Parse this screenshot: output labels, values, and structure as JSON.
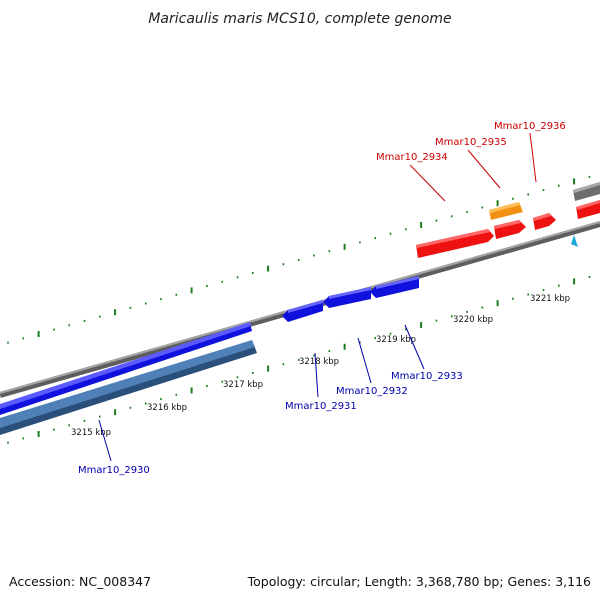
{
  "title": "Maricaulis maris MCS10, complete genome",
  "footer": {
    "accession": "Accession: NC_008347",
    "info": "Topology: circular; Length: 3,368,780 bp; Genes: 3,116"
  },
  "colors": {
    "background": "#ffffff",
    "backbone": "#8a8a8a",
    "tick_dots": "#1e7d1e",
    "forward_gene": "#ee1111",
    "forward_gene_label": "#cc0000",
    "orange_gene": "#f29111",
    "gray_gene": "#6d6d6d",
    "reverse_gene": "#1111dd",
    "reverse_gene_label": "#0000aa",
    "reverse_steelblue_gene": "#4f81b8",
    "marker_cyan": "#1aa7d8"
  },
  "scale_ticks": [
    "3215 kbp",
    "3216 kbp",
    "3217 kbp",
    "3218 kbp",
    "3219 kbp",
    "3220 kbp",
    "3221 kbp"
  ],
  "genes_forward": [
    {
      "label": "Mmar10_2934"
    },
    {
      "label": "Mmar10_2935"
    },
    {
      "label": "Mmar10_2936"
    }
  ],
  "genes_reverse": [
    {
      "label": "Mmar10_2930"
    },
    {
      "label": "Mmar10_2931"
    },
    {
      "label": "Mmar10_2932"
    },
    {
      "label": "Mmar10_2933"
    }
  ],
  "icons": [
    "cyan-triangle-marker-icon"
  ]
}
